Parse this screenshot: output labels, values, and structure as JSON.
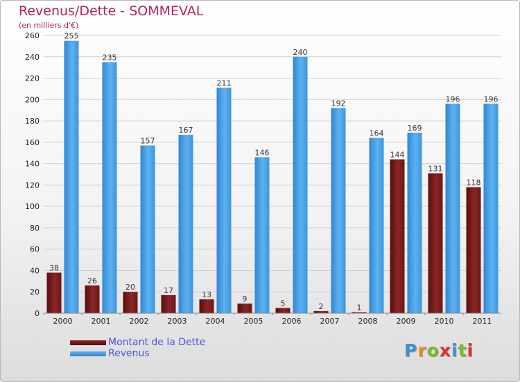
{
  "title": "Revenus/Dette - SOMMEVAL",
  "subtitle": "(en milliers d'€)",
  "logo": {
    "text": "Proxiti",
    "letter_colors": [
      "#3f8fd8",
      "#e98a23",
      "#7ab82e",
      "#d9332b",
      "#3f8fd8",
      "#7ab82e",
      "#d9332b"
    ]
  },
  "colors": {
    "dette": "#7a1a1a",
    "dette_light": "#9b2f2f",
    "revenus": "#3b9ae6",
    "revenus_light": "#62b3f2",
    "grid": "#cfcfcf"
  },
  "chart_data": {
    "type": "bar",
    "title": "Revenus/Dette - SOMMEVAL",
    "ylabel": "(en milliers d'€)",
    "xlabel": "",
    "categories": [
      "2000",
      "2001",
      "2002",
      "2003",
      "2004",
      "2005",
      "2006",
      "2007",
      "2008",
      "2009",
      "2010",
      "2011"
    ],
    "series": [
      {
        "name": "Montant de la Dette",
        "values": [
          38,
          26,
          20,
          17,
          13,
          9,
          5,
          2,
          1,
          144,
          131,
          118
        ]
      },
      {
        "name": "Revenus",
        "values": [
          255,
          235,
          157,
          167,
          211,
          146,
          240,
          192,
          164,
          169,
          196,
          196
        ]
      }
    ],
    "yticks": [
      0,
      20,
      40,
      60,
      80,
      100,
      120,
      140,
      160,
      180,
      200,
      220,
      240,
      260
    ],
    "ylim": [
      0,
      260
    ],
    "grid": true,
    "legend_position": "bottom-left"
  }
}
